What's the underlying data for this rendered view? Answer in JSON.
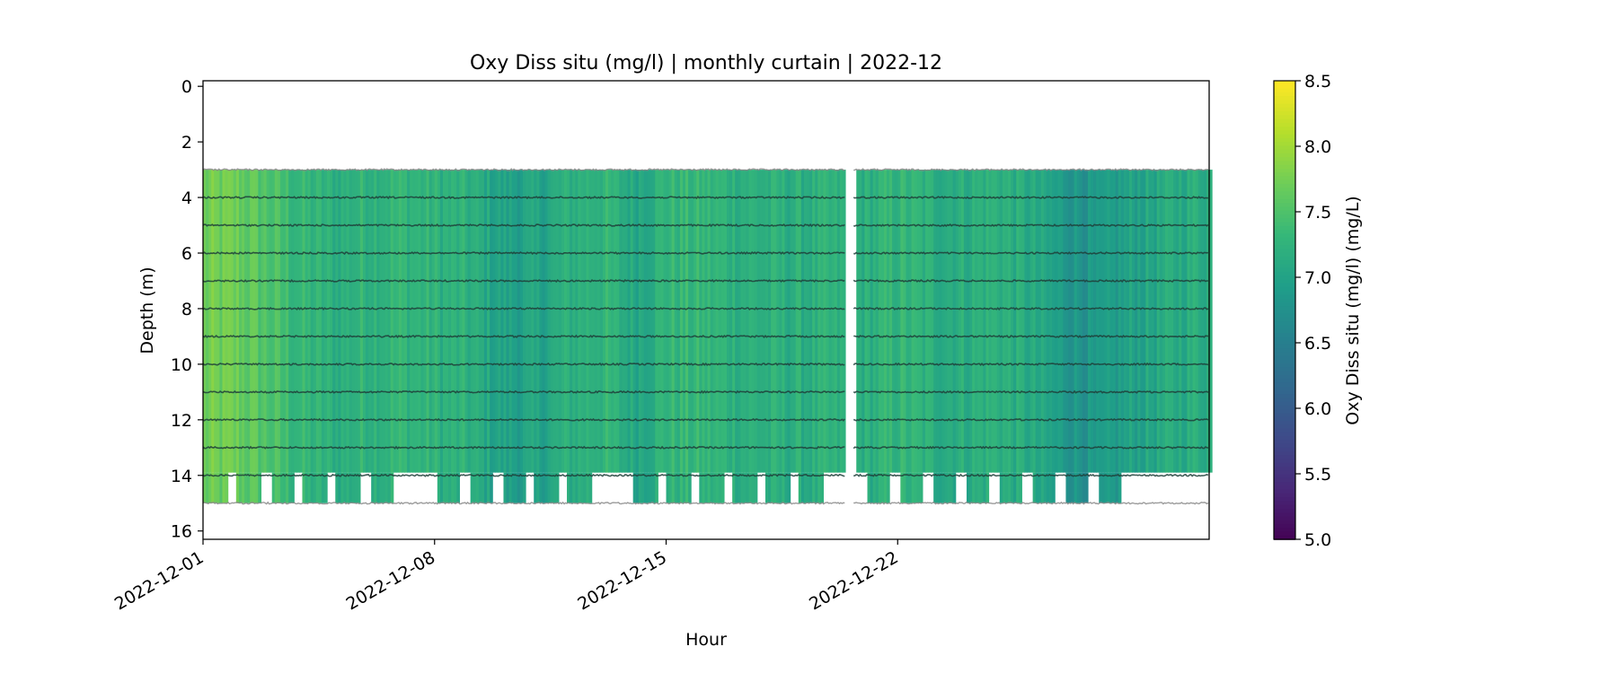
{
  "chart_data": {
    "type": "heatmap",
    "title": "Oxy Diss situ (mg/l) | monthly curtain | 2022-12",
    "xlabel": "Hour",
    "ylabel": "Depth (m)",
    "colorbar_label": "Oxy Diss situ (mg/l) (mg/L)",
    "colormap": "viridis",
    "xlim": [
      "2022-12-01",
      "2022-12-31T10:00"
    ],
    "ylim": [
      16.3,
      -0.2
    ],
    "y_inverted": true,
    "clim": [
      5.0,
      8.5
    ],
    "x_ticks": [
      "2022-12-01",
      "2022-12-08",
      "2022-12-15",
      "2022-12-22"
    ],
    "y_ticks": [
      "0",
      "2",
      "4",
      "6",
      "8",
      "10",
      "12",
      "14",
      "16"
    ],
    "colorbar_ticks": [
      "5.0",
      "5.5",
      "6.0",
      "6.5",
      "7.0",
      "7.5",
      "8.0",
      "8.5"
    ],
    "grid": false,
    "legend": "none",
    "sensor_depths_m": [
      3,
      4,
      5,
      6,
      7,
      8,
      9,
      10,
      11,
      12,
      13,
      14,
      15
    ],
    "data_gap": [
      "2022-12-20T10:00",
      "2022-12-20T16:00"
    ],
    "time_bins_days": [
      0,
      1,
      2,
      3,
      4,
      5,
      6,
      7,
      8,
      9,
      10,
      11,
      12,
      13,
      14,
      15,
      16,
      17,
      18,
      19,
      20,
      21,
      22,
      23,
      24,
      25,
      26,
      27,
      28,
      29,
      30
    ],
    "daily_mean_oxy_mg_l": [
      7.7,
      7.7,
      7.5,
      7.3,
      7.2,
      7.3,
      7.3,
      7.25,
      7.2,
      7.0,
      7.0,
      7.2,
      7.3,
      7.1,
      7.3,
      7.3,
      7.25,
      7.2,
      7.2,
      7.2,
      7.2,
      7.3,
      7.2,
      7.2,
      7.25,
      7.1,
      6.9,
      6.8,
      7.0,
      7.1,
      7.2
    ],
    "bottom_sensor_15m_present_days": [
      0,
      1,
      2,
      3,
      4,
      5,
      7,
      8,
      9,
      10,
      11,
      13,
      14,
      15,
      16,
      17,
      18,
      20,
      21,
      22,
      23,
      24,
      25,
      26,
      27
    ]
  }
}
